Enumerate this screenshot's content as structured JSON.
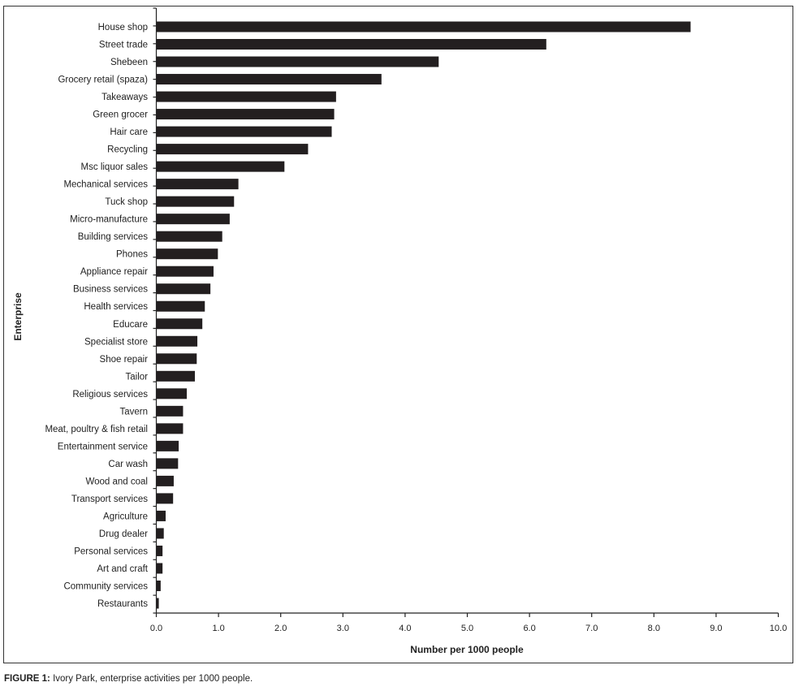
{
  "chart_data": {
    "type": "bar",
    "orientation": "horizontal",
    "xlabel": "Number per 1000 people",
    "ylabel": "Enterprise",
    "xlim": [
      0,
      10
    ],
    "xticks": [
      "0.0",
      "1.0",
      "2.0",
      "3.0",
      "4.0",
      "5.0",
      "6.0",
      "7.0",
      "8.0",
      "9.0",
      "10.0"
    ],
    "grid": false,
    "bar_color": "#231f20",
    "categories": [
      "House shop",
      "Street trade",
      "Shebeen",
      "Grocery retail (spaza)",
      "Takeaways",
      "Green grocer",
      "Hair care",
      "Recycling",
      "Msc liquor sales",
      "Mechanical services",
      "Tuck shop",
      "Micro-manufacture",
      "Building services",
      "Phones",
      "Appliance repair",
      "Business services",
      "Health services",
      "Educare",
      "Specialist store",
      "Shoe repair",
      "Tailor",
      "Religious services",
      "Tavern",
      "Meat, poultry & fish retail",
      "Entertainment service",
      "Car wash",
      "Wood and coal",
      "Transport services",
      "Agriculture",
      "Drug dealer",
      "Personal services",
      "Art and craft",
      "Community services",
      "Restaurants"
    ],
    "values": [
      8.59,
      6.27,
      4.54,
      3.62,
      2.89,
      2.86,
      2.82,
      2.44,
      2.06,
      1.32,
      1.25,
      1.18,
      1.06,
      0.99,
      0.92,
      0.87,
      0.78,
      0.74,
      0.66,
      0.65,
      0.62,
      0.49,
      0.43,
      0.43,
      0.36,
      0.35,
      0.28,
      0.27,
      0.15,
      0.12,
      0.1,
      0.1,
      0.07,
      0.04
    ]
  },
  "caption": {
    "label": "FIGURE 1:",
    "text": " Ivory Park, enterprise activities per 1000 people."
  }
}
